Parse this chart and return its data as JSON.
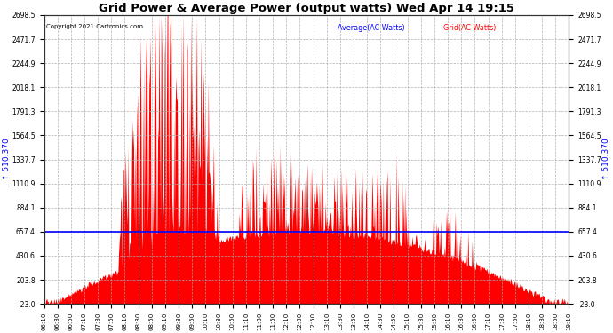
{
  "title": "Grid Power & Average Power (output watts) Wed Apr 14 19:15",
  "copyright": "Copyright 2021 Cartronics.com",
  "legend_avg": "Average(AC Watts)",
  "legend_grid": "Grid(AC Watts)",
  "y_ticks": [
    -23.0,
    203.8,
    430.6,
    657.4,
    884.1,
    1110.9,
    1337.7,
    1564.5,
    1791.3,
    2018.1,
    2244.9,
    2471.7,
    2698.5
  ],
  "y_min": -23.0,
  "y_max": 2698.5,
  "avg_line_value": 657.4,
  "left_ylabel": "↑ 510.370",
  "right_ylabel": "↑ 510.370",
  "background_color": "#ffffff",
  "grid_color": "#aaaaaa",
  "fill_color": "#ff0000",
  "avg_line_color": "#0000ff",
  "title_color": "#000000",
  "copyright_color": "#000000",
  "legend_avg_color": "#0000ff",
  "legend_grid_color": "#ff0000",
  "x_label_interval_min": 20,
  "x_data_interval_min": 1,
  "x_start_hour": 6,
  "x_start_min": 10,
  "x_end_hour": 19,
  "x_end_min": 10,
  "figwidth": 6.9,
  "figheight": 3.75,
  "dpi": 100
}
